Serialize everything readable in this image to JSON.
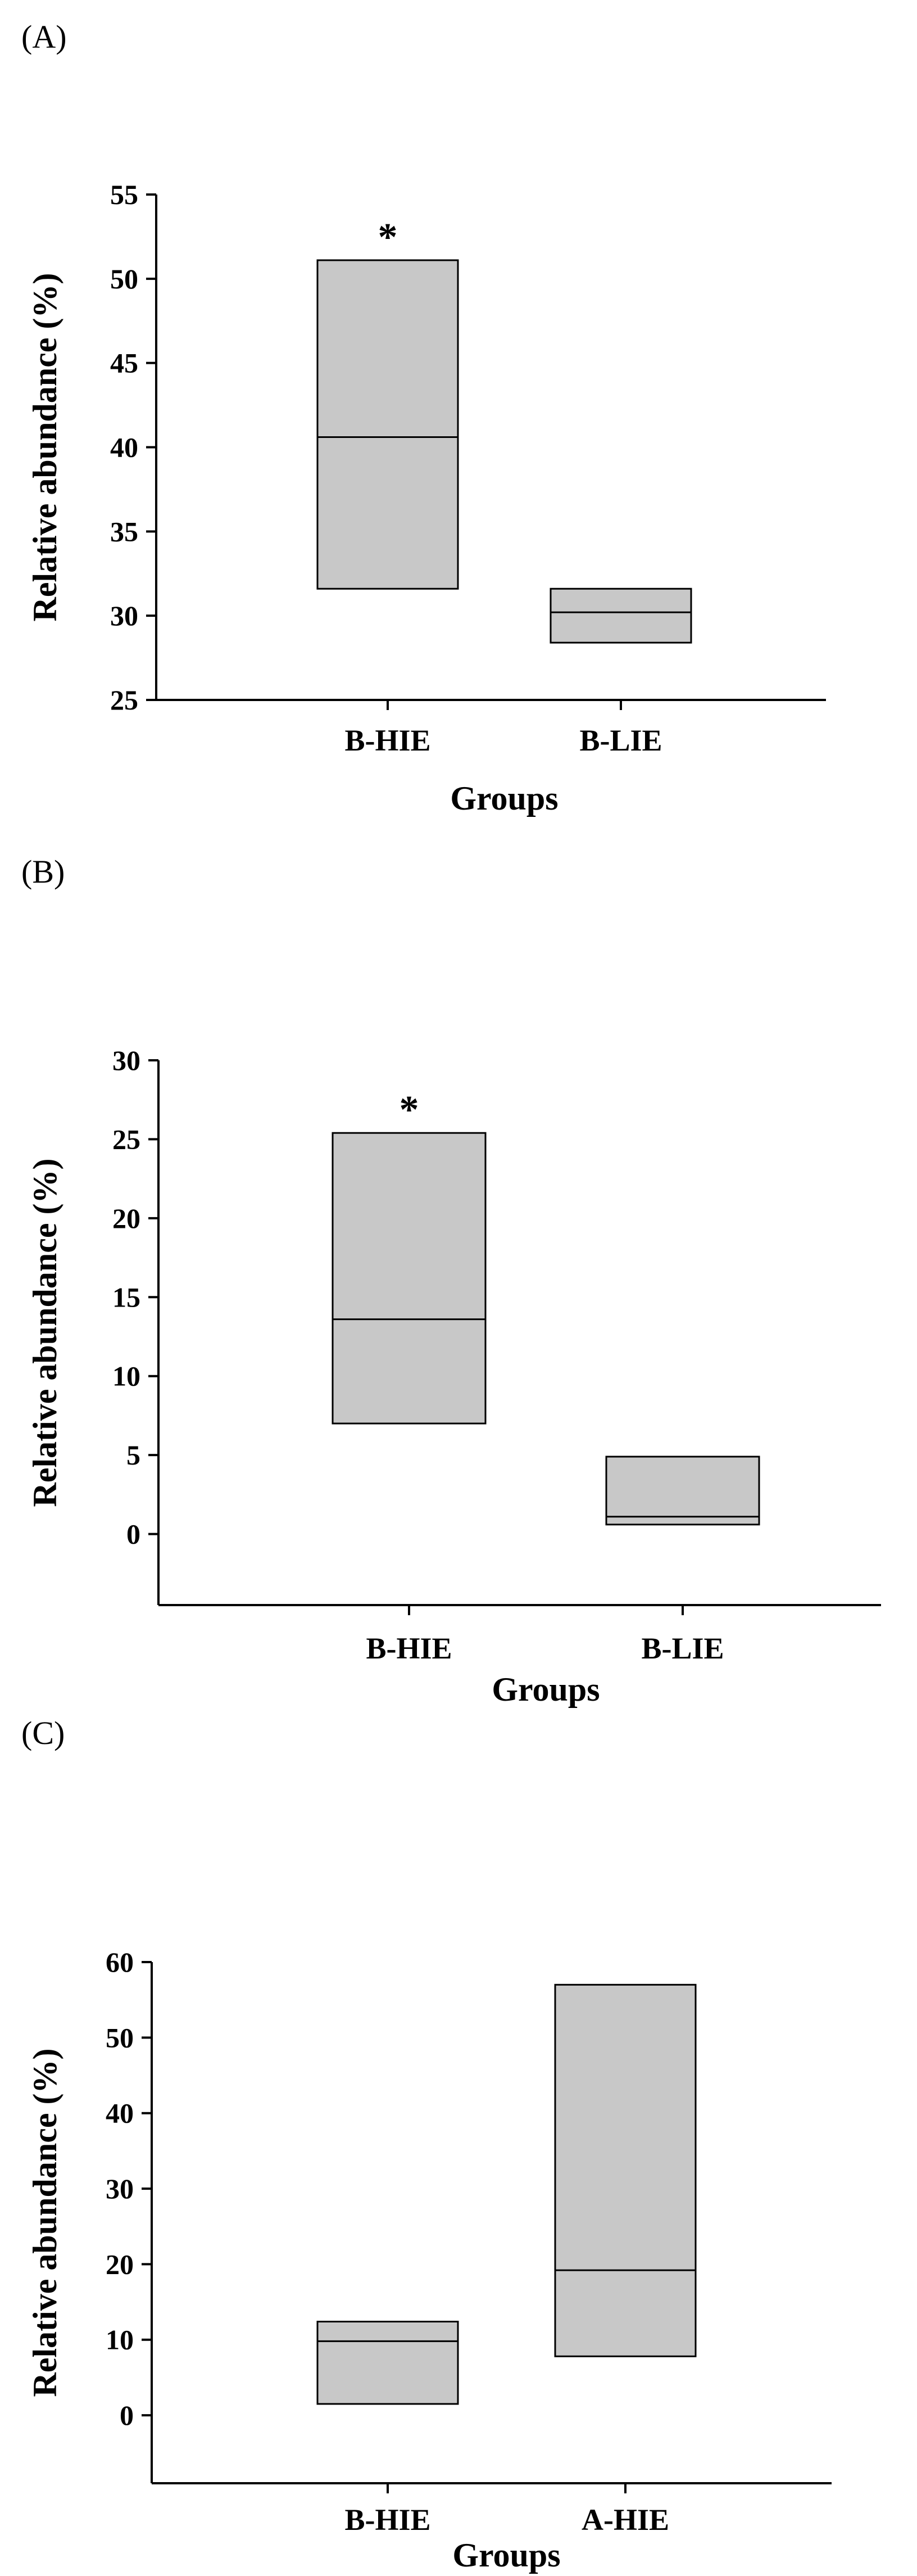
{
  "chart_data": [
    {
      "type": "box",
      "panel_label": "(A)",
      "xlabel": "Groups",
      "ylabel": "Relative abundance (%)",
      "ylim": [
        25,
        55
      ],
      "yticks": [
        25,
        30,
        35,
        40,
        45,
        50,
        55
      ],
      "categories": [
        "B-HIE",
        "B-LIE"
      ],
      "boxes": [
        {
          "category": "B-HIE",
          "q1": 31.6,
          "median": 40.6,
          "q3": 51.1,
          "annotation": "*"
        },
        {
          "category": "B-LIE",
          "q1": 28.4,
          "median": 30.2,
          "q3": 31.6,
          "annotation": ""
        }
      ],
      "box_color": "#c8c8c8"
    },
    {
      "type": "box",
      "panel_label": "(B)",
      "xlabel": "Groups",
      "ylabel": "Relative abundance (%)",
      "ylim": [
        -4.5,
        30
      ],
      "yticks": [
        0,
        5,
        10,
        15,
        20,
        25,
        30
      ],
      "categories": [
        "B-HIE",
        "B-LIE"
      ],
      "boxes": [
        {
          "category": "B-HIE",
          "q1": 7.0,
          "median": 13.6,
          "q3": 25.4,
          "annotation": "*"
        },
        {
          "category": "B-LIE",
          "q1": 0.6,
          "median": 1.1,
          "q3": 4.9,
          "annotation": ""
        }
      ],
      "box_color": "#c8c8c8"
    },
    {
      "type": "box",
      "panel_label": "(C)",
      "xlabel": "Groups",
      "ylabel": "Relative abundance (%)",
      "ylim": [
        -9,
        60
      ],
      "yticks": [
        0,
        10,
        20,
        30,
        40,
        50,
        60
      ],
      "categories": [
        "B-HIE",
        "A-HIE"
      ],
      "boxes": [
        {
          "category": "B-HIE",
          "q1": 1.5,
          "median": 9.8,
          "q3": 12.4,
          "annotation": ""
        },
        {
          "category": "A-HIE",
          "q1": 7.8,
          "median": 19.2,
          "q3": 57.0,
          "annotation": ""
        }
      ],
      "box_color": "#c8c8c8"
    }
  ]
}
